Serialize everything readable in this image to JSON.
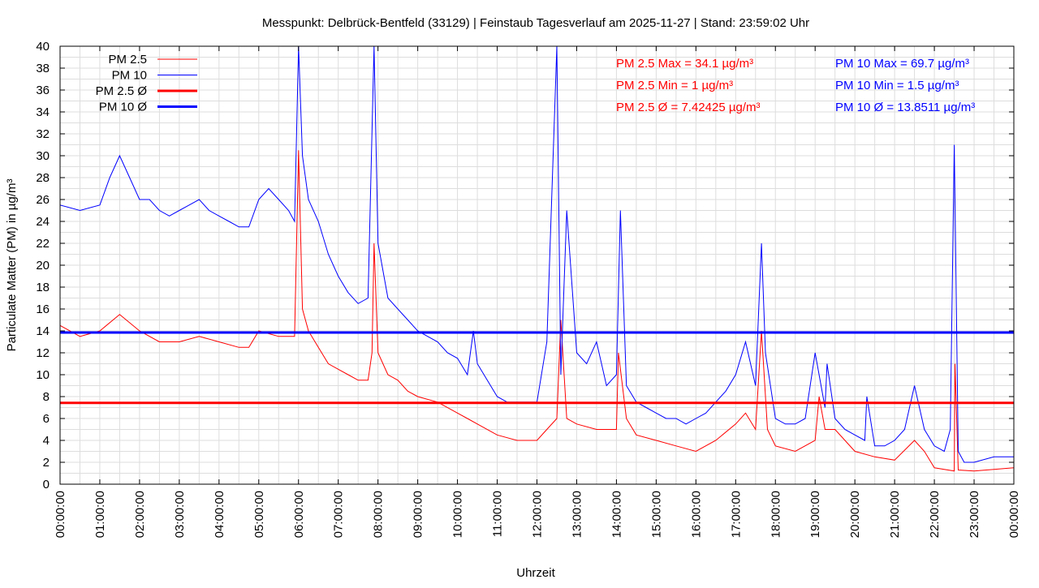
{
  "chart_data": {
    "type": "line",
    "title": "Messpunkt: Delbrück-Bentfeld (33129) | Feinstaub Tagesverlauf am 2025-11-27 | Stand: 23:59:02 Uhr",
    "xlabel": "Uhrzeit",
    "ylabel": "Particulate Matter (PM) in µg/m³",
    "xlim": [
      0,
      24
    ],
    "ylim": [
      0,
      40
    ],
    "grid": true,
    "legend_position": "top-left",
    "x_tick_labels": [
      "00:00:00",
      "01:00:00",
      "02:00:00",
      "03:00:00",
      "04:00:00",
      "05:00:00",
      "06:00:00",
      "07:00:00",
      "08:00:00",
      "09:00:00",
      "10:00:00",
      "11:00:00",
      "12:00:00",
      "13:00:00",
      "14:00:00",
      "15:00:00",
      "16:00:00",
      "17:00:00",
      "18:00:00",
      "19:00:00",
      "20:00:00",
      "21:00:00",
      "22:00:00",
      "23:00:00",
      "00:00:00"
    ],
    "y_tick_labels": [
      "0",
      "2",
      "4",
      "6",
      "8",
      "10",
      "12",
      "14",
      "16",
      "18",
      "20",
      "22",
      "24",
      "26",
      "28",
      "30",
      "32",
      "34",
      "36",
      "38",
      "40"
    ],
    "series": [
      {
        "name": "PM 2.5",
        "color": "#ff0000",
        "x": [
          0,
          0.5,
          1,
          1.5,
          2,
          2.5,
          3,
          3.5,
          4,
          4.5,
          4.75,
          5,
          5.5,
          5.9,
          6,
          6.1,
          6.25,
          6.5,
          6.75,
          7,
          7.25,
          7.5,
          7.75,
          7.85,
          7.9,
          8,
          8.25,
          8.5,
          8.75,
          9,
          9.5,
          10,
          10.25,
          10.5,
          11,
          11.5,
          12,
          12.25,
          12.5,
          12.6,
          12.75,
          13,
          13.5,
          14,
          14.05,
          14.25,
          14.5,
          15,
          15.5,
          16,
          16.5,
          17,
          17.25,
          17.5,
          17.65,
          17.8,
          18,
          18.5,
          19,
          19.1,
          19.25,
          19.5,
          20,
          20.5,
          21,
          21.5,
          21.75,
          22,
          22.5,
          22.52,
          22.6,
          23,
          24
        ],
        "y": [
          14.5,
          13.5,
          14,
          15.5,
          14,
          13,
          13,
          13.5,
          13,
          12.5,
          12.5,
          14,
          13.5,
          13.5,
          30.5,
          16,
          14,
          12.5,
          11,
          10.5,
          10,
          9.5,
          9.5,
          12,
          22,
          12,
          10,
          9.5,
          8.5,
          8,
          7.5,
          6.5,
          6,
          5.5,
          4.5,
          4,
          4,
          5,
          6,
          15,
          6,
          5.5,
          5,
          5,
          12,
          6,
          4.5,
          4,
          3.5,
          3,
          4,
          5.5,
          6.5,
          5,
          14,
          5,
          3.5,
          3,
          4,
          8,
          5,
          5,
          3,
          2.5,
          2.2,
          4,
          3,
          1.5,
          1.2,
          11,
          1.3,
          1.2,
          1.5
        ]
      },
      {
        "name": "PM 10",
        "color": "#0000ff",
        "x": [
          0,
          0.5,
          1,
          1.25,
          1.5,
          1.75,
          2,
          2.25,
          2.5,
          2.75,
          3,
          3.25,
          3.5,
          3.75,
          4,
          4.25,
          4.5,
          4.75,
          5,
          5.25,
          5.5,
          5.75,
          5.9,
          6,
          6.1,
          6.25,
          6.5,
          6.75,
          7,
          7.25,
          7.5,
          7.75,
          7.9,
          8,
          8.25,
          8.5,
          8.75,
          9,
          9.25,
          9.5,
          9.75,
          10,
          10.25,
          10.4,
          10.5,
          10.75,
          11,
          11.25,
          11.5,
          11.75,
          12,
          12.25,
          12.5,
          12.6,
          12.75,
          13,
          13.25,
          13.5,
          13.75,
          14,
          14.1,
          14.25,
          14.5,
          14.75,
          15,
          15.25,
          15.5,
          15.75,
          16,
          16.25,
          16.5,
          16.75,
          17,
          17.25,
          17.5,
          17.65,
          17.75,
          18,
          18.25,
          18.5,
          18.75,
          19,
          19.25,
          19.3,
          19.5,
          19.75,
          20,
          20.25,
          20.3,
          20.5,
          20.75,
          21,
          21.25,
          21.5,
          21.75,
          22,
          22.25,
          22.4,
          22.5,
          22.6,
          22.75,
          23,
          23.5,
          24
        ],
        "y": [
          25.5,
          25,
          25.5,
          28,
          30,
          28,
          26,
          26,
          25,
          24.5,
          25,
          25.5,
          26,
          25,
          24.5,
          24,
          23.5,
          23.5,
          26,
          27,
          26,
          25,
          24,
          40,
          30,
          26,
          24,
          21,
          19,
          17.5,
          16.5,
          17,
          40,
          22,
          17,
          16,
          15,
          14,
          13.5,
          13,
          12,
          11.5,
          10,
          14,
          11,
          9.5,
          8,
          7.5,
          7.5,
          7.5,
          7.5,
          13,
          40,
          10,
          25,
          12,
          11,
          13,
          9,
          10,
          25,
          9,
          7.5,
          7,
          6.5,
          6,
          6,
          5.5,
          6,
          6.5,
          7.5,
          8.5,
          10,
          13,
          9,
          22,
          12,
          6,
          5.5,
          5.5,
          6,
          12,
          7,
          11,
          6,
          5,
          4.5,
          4,
          8,
          3.5,
          3.5,
          4,
          5,
          9,
          5,
          3.5,
          3,
          5,
          31,
          3,
          2,
          2,
          2.5,
          2.5
        ]
      },
      {
        "name": "PM 2.5 Ø",
        "color": "#ff0000",
        "value": 7.42425
      },
      {
        "name": "PM 10 Ø",
        "color": "#0000ff",
        "value": 13.8511
      }
    ],
    "annotations": {
      "pm25": [
        "PM 2.5 Max = 34.1 µg/m³",
        "PM 2.5 Min = 1 µg/m³",
        "PM 2.5 Ø = 7.42425 µg/m³"
      ],
      "pm10": [
        "PM 10 Max = 69.7 µg/m³",
        "PM 10 Min = 1.5 µg/m³",
        "PM 10 Ø = 13.8511 µg/m³"
      ]
    }
  }
}
